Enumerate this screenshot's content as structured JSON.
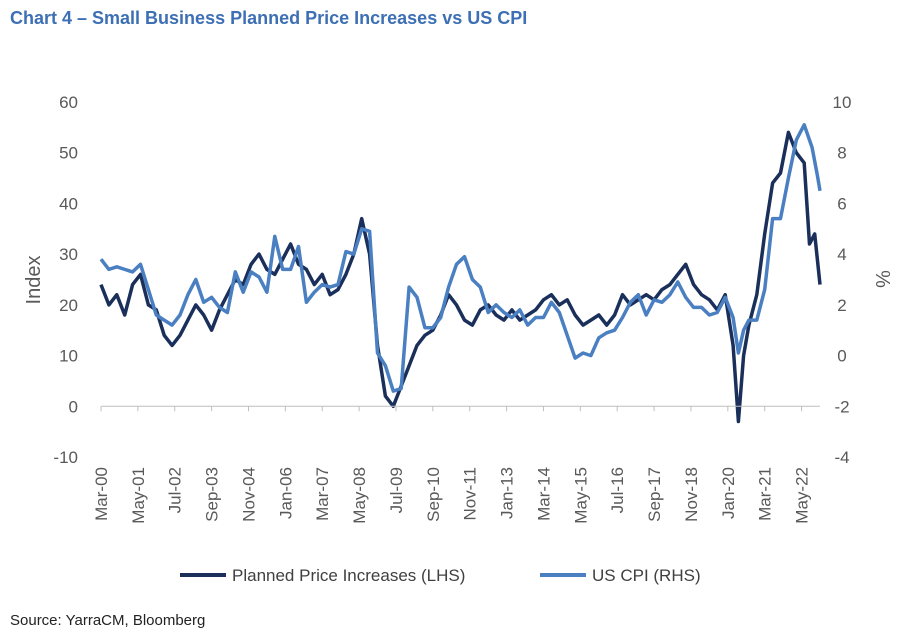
{
  "header": {
    "title": "Chart 4 – Small Business Planned Price Increases vs US CPI",
    "source": "Source: YarraCM, Bloomberg"
  },
  "colors": {
    "planned": "#1a2f5a",
    "cpi": "#4a7fc1",
    "axis": "#bfbfbf",
    "text": "#595959"
  },
  "chart_data": {
    "type": "line",
    "title": "Chart 4 – Small Business Planned Price Increases vs US CPI",
    "ylabel": "Index",
    "y2label": "%",
    "ylim": [
      -10,
      60
    ],
    "y2lim": [
      -4,
      10
    ],
    "yticks": [
      -10,
      0,
      10,
      20,
      30,
      40,
      50,
      60
    ],
    "y2ticks": [
      -4,
      -2,
      0,
      2,
      4,
      6,
      8,
      10
    ],
    "xlim": [
      "2000-03",
      "2022-12"
    ],
    "xticks": [
      "Mar-00",
      "May-01",
      "Jul-02",
      "Sep-03",
      "Nov-04",
      "Jan-06",
      "Mar-07",
      "May-08",
      "Jul-09",
      "Sep-10",
      "Nov-11",
      "Jan-13",
      "Mar-14",
      "May-15",
      "Jul-16",
      "Sep-17",
      "Nov-18",
      "Jan-20",
      "Mar-21",
      "May-22"
    ],
    "legend_position": "bottom",
    "grid": false,
    "series": [
      {
        "name": "Planned Price Increases (LHS)",
        "axis": "left",
        "color": "#1a2f5a",
        "points": [
          [
            "2000-03",
            24
          ],
          [
            "2000-06",
            20
          ],
          [
            "2000-09",
            22
          ],
          [
            "2000-12",
            18
          ],
          [
            "2001-03",
            24
          ],
          [
            "2001-06",
            26
          ],
          [
            "2001-09",
            20
          ],
          [
            "2001-12",
            19
          ],
          [
            "2002-03",
            14
          ],
          [
            "2002-06",
            12
          ],
          [
            "2002-09",
            14
          ],
          [
            "2002-12",
            17
          ],
          [
            "2003-03",
            20
          ],
          [
            "2003-06",
            18
          ],
          [
            "2003-09",
            15
          ],
          [
            "2003-12",
            19
          ],
          [
            "2004-03",
            22
          ],
          [
            "2004-06",
            25
          ],
          [
            "2004-09",
            24
          ],
          [
            "2004-12",
            28
          ],
          [
            "2005-03",
            30
          ],
          [
            "2005-06",
            27
          ],
          [
            "2005-09",
            26
          ],
          [
            "2005-12",
            29
          ],
          [
            "2006-03",
            32
          ],
          [
            "2006-06",
            28
          ],
          [
            "2006-09",
            27
          ],
          [
            "2006-12",
            24
          ],
          [
            "2007-03",
            26
          ],
          [
            "2007-06",
            22
          ],
          [
            "2007-09",
            23
          ],
          [
            "2007-12",
            26
          ],
          [
            "2008-03",
            30
          ],
          [
            "2008-06",
            37
          ],
          [
            "2008-09",
            30
          ],
          [
            "2008-12",
            12
          ],
          [
            "2009-03",
            2
          ],
          [
            "2009-06",
            0
          ],
          [
            "2009-09",
            4
          ],
          [
            "2009-12",
            8
          ],
          [
            "2010-03",
            12
          ],
          [
            "2010-06",
            14
          ],
          [
            "2010-09",
            15
          ],
          [
            "2010-12",
            18
          ],
          [
            "2011-03",
            22
          ],
          [
            "2011-06",
            20
          ],
          [
            "2011-09",
            17
          ],
          [
            "2011-12",
            16
          ],
          [
            "2012-03",
            19
          ],
          [
            "2012-06",
            20
          ],
          [
            "2012-09",
            18
          ],
          [
            "2012-12",
            17
          ],
          [
            "2013-03",
            19
          ],
          [
            "2013-06",
            17
          ],
          [
            "2013-09",
            18
          ],
          [
            "2013-12",
            19
          ],
          [
            "2014-03",
            21
          ],
          [
            "2014-06",
            22
          ],
          [
            "2014-09",
            20
          ],
          [
            "2014-12",
            21
          ],
          [
            "2015-03",
            18
          ],
          [
            "2015-06",
            16
          ],
          [
            "2015-09",
            17
          ],
          [
            "2015-12",
            18
          ],
          [
            "2016-03",
            16
          ],
          [
            "2016-06",
            18
          ],
          [
            "2016-09",
            22
          ],
          [
            "2016-12",
            20
          ],
          [
            "2017-03",
            21
          ],
          [
            "2017-06",
            22
          ],
          [
            "2017-09",
            21
          ],
          [
            "2017-12",
            23
          ],
          [
            "2018-03",
            24
          ],
          [
            "2018-06",
            26
          ],
          [
            "2018-09",
            28
          ],
          [
            "2018-12",
            24
          ],
          [
            "2019-03",
            22
          ],
          [
            "2019-06",
            21
          ],
          [
            "2019-09",
            19
          ],
          [
            "2019-12",
            22
          ],
          [
            "2020-03",
            12
          ],
          [
            "2020-05",
            -3
          ],
          [
            "2020-07",
            10
          ],
          [
            "2020-09",
            16
          ],
          [
            "2020-12",
            22
          ],
          [
            "2021-03",
            34
          ],
          [
            "2021-06",
            44
          ],
          [
            "2021-09",
            46
          ],
          [
            "2021-12",
            54
          ],
          [
            "2022-03",
            50
          ],
          [
            "2022-06",
            48
          ],
          [
            "2022-08",
            32
          ],
          [
            "2022-10",
            34
          ],
          [
            "2022-12",
            24
          ]
        ]
      },
      {
        "name": "US CPI (RHS)",
        "axis": "right",
        "color": "#4a7fc1",
        "points": [
          [
            "2000-03",
            3.8
          ],
          [
            "2000-06",
            3.4
          ],
          [
            "2000-09",
            3.5
          ],
          [
            "2000-12",
            3.4
          ],
          [
            "2001-03",
            3.3
          ],
          [
            "2001-06",
            3.6
          ],
          [
            "2001-09",
            2.6
          ],
          [
            "2001-12",
            1.6
          ],
          [
            "2002-03",
            1.4
          ],
          [
            "2002-06",
            1.2
          ],
          [
            "2002-09",
            1.6
          ],
          [
            "2002-12",
            2.4
          ],
          [
            "2003-03",
            3.0
          ],
          [
            "2003-06",
            2.1
          ],
          [
            "2003-09",
            2.3
          ],
          [
            "2003-12",
            1.9
          ],
          [
            "2004-03",
            1.7
          ],
          [
            "2004-06",
            3.3
          ],
          [
            "2004-09",
            2.5
          ],
          [
            "2004-12",
            3.3
          ],
          [
            "2005-03",
            3.1
          ],
          [
            "2005-06",
            2.5
          ],
          [
            "2005-09",
            4.7
          ],
          [
            "2005-12",
            3.4
          ],
          [
            "2006-03",
            3.4
          ],
          [
            "2006-06",
            4.3
          ],
          [
            "2006-09",
            2.1
          ],
          [
            "2006-12",
            2.5
          ],
          [
            "2007-03",
            2.8
          ],
          [
            "2007-06",
            2.7
          ],
          [
            "2007-09",
            2.8
          ],
          [
            "2007-12",
            4.1
          ],
          [
            "2008-03",
            4.0
          ],
          [
            "2008-06",
            5.0
          ],
          [
            "2008-09",
            4.9
          ],
          [
            "2008-12",
            0.1
          ],
          [
            "2009-03",
            -0.4
          ],
          [
            "2009-06",
            -1.4
          ],
          [
            "2009-09",
            -1.3
          ],
          [
            "2009-12",
            2.7
          ],
          [
            "2010-03",
            2.3
          ],
          [
            "2010-06",
            1.1
          ],
          [
            "2010-09",
            1.1
          ],
          [
            "2010-12",
            1.5
          ],
          [
            "2011-03",
            2.7
          ],
          [
            "2011-06",
            3.6
          ],
          [
            "2011-09",
            3.9
          ],
          [
            "2011-12",
            3.0
          ],
          [
            "2012-03",
            2.7
          ],
          [
            "2012-06",
            1.7
          ],
          [
            "2012-09",
            2.0
          ],
          [
            "2012-12",
            1.7
          ],
          [
            "2013-03",
            1.5
          ],
          [
            "2013-06",
            1.8
          ],
          [
            "2013-09",
            1.2
          ],
          [
            "2013-12",
            1.5
          ],
          [
            "2014-03",
            1.5
          ],
          [
            "2014-06",
            2.1
          ],
          [
            "2014-09",
            1.7
          ],
          [
            "2014-12",
            0.8
          ],
          [
            "2015-03",
            -0.1
          ],
          [
            "2015-06",
            0.1
          ],
          [
            "2015-09",
            0.0
          ],
          [
            "2015-12",
            0.7
          ],
          [
            "2016-03",
            0.9
          ],
          [
            "2016-06",
            1.0
          ],
          [
            "2016-09",
            1.5
          ],
          [
            "2016-12",
            2.1
          ],
          [
            "2017-03",
            2.4
          ],
          [
            "2017-06",
            1.6
          ],
          [
            "2017-09",
            2.2
          ],
          [
            "2017-12",
            2.1
          ],
          [
            "2018-03",
            2.4
          ],
          [
            "2018-06",
            2.9
          ],
          [
            "2018-09",
            2.3
          ],
          [
            "2018-12",
            1.9
          ],
          [
            "2019-03",
            1.9
          ],
          [
            "2019-06",
            1.6
          ],
          [
            "2019-09",
            1.7
          ],
          [
            "2019-12",
            2.3
          ],
          [
            "2020-03",
            1.5
          ],
          [
            "2020-05",
            0.1
          ],
          [
            "2020-07",
            1.0
          ],
          [
            "2020-09",
            1.4
          ],
          [
            "2020-12",
            1.4
          ],
          [
            "2021-03",
            2.6
          ],
          [
            "2021-06",
            5.4
          ],
          [
            "2021-09",
            5.4
          ],
          [
            "2021-12",
            7.0
          ],
          [
            "2022-03",
            8.5
          ],
          [
            "2022-06",
            9.1
          ],
          [
            "2022-09",
            8.2
          ],
          [
            "2022-11",
            7.1
          ],
          [
            "2022-12",
            6.5
          ]
        ]
      }
    ]
  }
}
